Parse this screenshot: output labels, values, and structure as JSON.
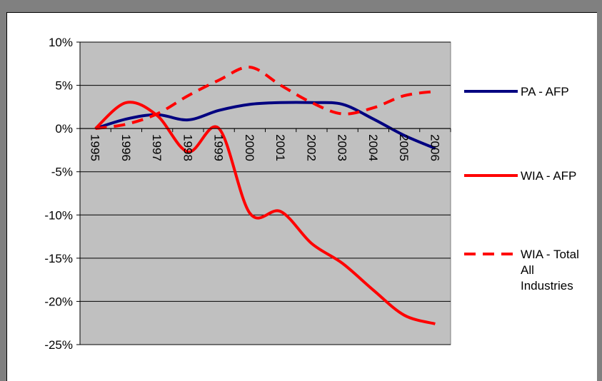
{
  "chart_data": {
    "type": "line",
    "title": "",
    "xlabel": "",
    "ylabel": "",
    "categories": [
      "1995",
      "1996",
      "1997",
      "1998",
      "1999",
      "2000",
      "2001",
      "2002",
      "2003",
      "2004",
      "2005",
      "2006"
    ],
    "ylim": [
      -25,
      10
    ],
    "yticks": [
      10,
      5,
      0,
      -5,
      -10,
      -15,
      -20,
      -25
    ],
    "ytick_labels": [
      "10%",
      "5%",
      "0%",
      "-5%",
      "-10%",
      "-15%",
      "-20%",
      "-25%"
    ],
    "grid": true,
    "plot_background": "#c0c0c0",
    "legend_position": "right",
    "series": [
      {
        "name": "PA - AFP",
        "color": "#000080",
        "style": "solid",
        "values": [
          0.0,
          1.1,
          1.6,
          1.0,
          2.1,
          2.8,
          3.0,
          3.0,
          2.8,
          1.1,
          -0.8,
          -2.3
        ]
      },
      {
        "name": "WIA - AFP",
        "color": "#ff0000",
        "style": "solid",
        "values": [
          0.0,
          3.0,
          1.5,
          -2.7,
          0.0,
          -9.8,
          -9.6,
          -13.3,
          -15.6,
          -18.7,
          -21.6,
          -22.6
        ]
      },
      {
        "name": "WIA - Total All Industries",
        "legend_lines": [
          "WIA - Total",
          "All",
          "Industries"
        ],
        "color": "#ff0000",
        "style": "dashed",
        "values": [
          0.0,
          0.5,
          1.7,
          3.8,
          5.6,
          7.1,
          5.0,
          3.0,
          1.7,
          2.4,
          3.8,
          4.3
        ]
      }
    ]
  }
}
